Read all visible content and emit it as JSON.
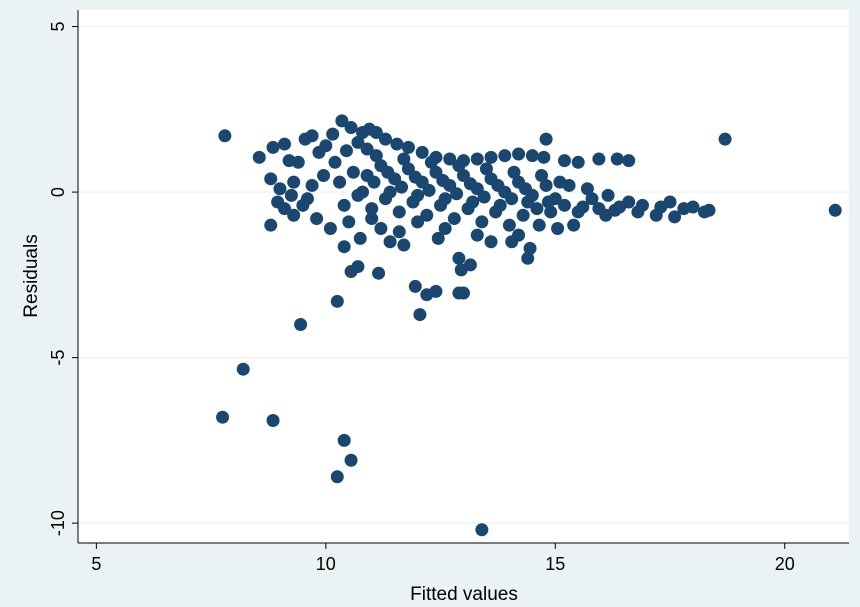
{
  "chart_data": {
    "type": "scatter",
    "xlabel": "Fitted values",
    "ylabel": "Residuals",
    "xlim": [
      4.6,
      21.4
    ],
    "ylim": [
      -10.6,
      5.5
    ],
    "x_ticks": [
      5,
      10,
      15,
      20
    ],
    "y_ticks": [
      5,
      0,
      -5,
      -10
    ],
    "grid": "horizontal",
    "colors": {
      "marker": "#1a476f",
      "plot_bg": "#ffffff",
      "outer_bg": "#eaf2f3",
      "grid": "#eaf2f3"
    },
    "points": [
      [
        7.8,
        1.7
      ],
      [
        18.7,
        1.6
      ],
      [
        21.1,
        -0.55
      ],
      [
        14.8,
        1.6
      ],
      [
        7.75,
        -6.8
      ],
      [
        8.2,
        -5.35
      ],
      [
        8.85,
        -6.9
      ],
      [
        9.45,
        -4.0
      ],
      [
        10.25,
        -3.3
      ],
      [
        10.4,
        -7.5
      ],
      [
        10.55,
        -8.1
      ],
      [
        10.25,
        -8.6
      ],
      [
        13.4,
        -10.2
      ],
      [
        12.05,
        -3.7
      ],
      [
        11.95,
        -2.85
      ],
      [
        12.2,
        -3.1
      ],
      [
        12.4,
        -3.0
      ],
      [
        12.9,
        -3.05
      ],
      [
        13.0,
        -3.05
      ],
      [
        11.15,
        -2.45
      ],
      [
        10.55,
        -2.4
      ],
      [
        10.7,
        -2.25
      ],
      [
        10.4,
        -1.65
      ],
      [
        10.75,
        -1.4
      ],
      [
        11.7,
        -1.6
      ],
      [
        12.95,
        -2.35
      ],
      [
        13.15,
        -2.2
      ],
      [
        12.9,
        -2.0
      ],
      [
        14.4,
        -2.0
      ],
      [
        14.45,
        -1.7
      ],
      [
        14.05,
        -1.5
      ],
      [
        13.6,
        -1.5
      ],
      [
        8.55,
        1.05
      ],
      [
        8.8,
        0.4
      ],
      [
        8.85,
        1.35
      ],
      [
        8.8,
        -1.0
      ],
      [
        9.1,
        1.45
      ],
      [
        9.2,
        0.95
      ],
      [
        9.4,
        0.9
      ],
      [
        9.3,
        0.3
      ],
      [
        8.95,
        -0.3
      ],
      [
        9.1,
        -0.5
      ],
      [
        9.3,
        -0.7
      ],
      [
        9.55,
        1.6
      ],
      [
        9.7,
        1.7
      ],
      [
        9.85,
        1.2
      ],
      [
        9.6,
        -0.2
      ],
      [
        9.8,
        -0.8
      ],
      [
        10.0,
        1.4
      ],
      [
        10.15,
        1.75
      ],
      [
        10.35,
        2.15
      ],
      [
        10.55,
        1.95
      ],
      [
        10.8,
        1.8
      ],
      [
        10.95,
        1.9
      ],
      [
        11.1,
        1.8
      ],
      [
        10.1,
        -1.1
      ],
      [
        10.5,
        -0.9
      ],
      [
        11.2,
        -1.1
      ],
      [
        11.6,
        -1.2
      ],
      [
        11.4,
        -1.5
      ],
      [
        12.45,
        -1.4
      ],
      [
        15.4,
        -1.0
      ],
      [
        15.05,
        -1.1
      ],
      [
        14.65,
        -1.0
      ],
      [
        14.2,
        -1.3
      ],
      [
        16.6,
        0.95
      ],
      [
        16.35,
        1.0
      ],
      [
        15.95,
        1.0
      ],
      [
        15.5,
        0.9
      ],
      [
        15.2,
        0.95
      ],
      [
        17.5,
        -0.3
      ],
      [
        17.8,
        -0.5
      ],
      [
        18.0,
        -0.45
      ],
      [
        18.35,
        -0.55
      ],
      [
        18.25,
        -0.6
      ],
      [
        17.6,
        -0.75
      ],
      [
        17.2,
        -0.7
      ],
      [
        16.8,
        -0.6
      ],
      [
        16.3,
        -0.55
      ],
      [
        15.95,
        -0.5
      ],
      [
        15.6,
        -0.45
      ],
      [
        16.1,
        -0.7
      ],
      [
        14.85,
        -0.3
      ],
      [
        15.3,
        0.2
      ],
      [
        15.1,
        0.3
      ],
      [
        15.7,
        0.1
      ],
      [
        16.15,
        -0.1
      ],
      [
        16.6,
        -0.3
      ],
      [
        9.0,
        0.1
      ],
      [
        9.25,
        -0.1
      ],
      [
        9.5,
        -0.4
      ],
      [
        9.7,
        0.2
      ],
      [
        9.95,
        0.5
      ],
      [
        10.2,
        0.9
      ],
      [
        10.45,
        1.25
      ],
      [
        10.7,
        1.5
      ],
      [
        10.9,
        1.3
      ],
      [
        11.3,
        1.6
      ],
      [
        11.55,
        1.45
      ],
      [
        11.8,
        1.35
      ],
      [
        12.1,
        1.2
      ],
      [
        12.4,
        1.05
      ],
      [
        12.7,
        1.0
      ],
      [
        13.0,
        0.95
      ],
      [
        13.3,
        1.0
      ],
      [
        13.6,
        1.05
      ],
      [
        13.9,
        1.1
      ],
      [
        14.2,
        1.15
      ],
      [
        14.5,
        1.1
      ],
      [
        14.75,
        1.05
      ],
      [
        10.3,
        0.3
      ],
      [
        10.6,
        0.6
      ],
      [
        10.9,
        0.5
      ],
      [
        11.2,
        0.8
      ],
      [
        11.5,
        0.4
      ],
      [
        11.8,
        0.7
      ],
      [
        12.1,
        0.3
      ],
      [
        12.4,
        0.6
      ],
      [
        12.7,
        0.2
      ],
      [
        13.0,
        0.5
      ],
      [
        13.3,
        0.1
      ],
      [
        13.6,
        0.4
      ],
      [
        13.9,
        0.0
      ],
      [
        14.2,
        0.3
      ],
      [
        14.5,
        -0.1
      ],
      [
        14.8,
        0.2
      ],
      [
        10.4,
        -0.4
      ],
      [
        10.7,
        -0.1
      ],
      [
        11.0,
        -0.5
      ],
      [
        11.3,
        -0.2
      ],
      [
        11.6,
        -0.6
      ],
      [
        11.9,
        -0.3
      ],
      [
        12.2,
        -0.7
      ],
      [
        12.5,
        -0.4
      ],
      [
        12.8,
        -0.8
      ],
      [
        13.1,
        -0.5
      ],
      [
        13.4,
        -0.9
      ],
      [
        13.7,
        -0.6
      ],
      [
        14.0,
        -1.0
      ],
      [
        14.3,
        -0.7
      ],
      [
        14.6,
        -0.5
      ],
      [
        14.9,
        -0.6
      ],
      [
        15.2,
        -0.4
      ],
      [
        10.8,
        0.0
      ],
      [
        11.1,
        1.1
      ],
      [
        11.4,
        0.0
      ],
      [
        11.7,
        1.0
      ],
      [
        12.0,
        -0.1
      ],
      [
        12.3,
        0.9
      ],
      [
        12.6,
        -0.2
      ],
      [
        12.9,
        0.8
      ],
      [
        13.2,
        -0.3
      ],
      [
        13.5,
        0.7
      ],
      [
        13.8,
        -0.4
      ],
      [
        14.1,
        0.6
      ],
      [
        14.4,
        -0.3
      ],
      [
        14.7,
        0.5
      ],
      [
        15.0,
        -0.2
      ],
      [
        15.5,
        -0.6
      ],
      [
        15.8,
        -0.2
      ],
      [
        16.4,
        -0.45
      ],
      [
        16.9,
        -0.4
      ],
      [
        17.3,
        -0.45
      ],
      [
        11.05,
        0.3
      ],
      [
        11.35,
        0.6
      ],
      [
        11.65,
        0.15
      ],
      [
        11.95,
        0.45
      ],
      [
        12.25,
        0.05
      ],
      [
        12.55,
        0.35
      ],
      [
        12.85,
        -0.05
      ],
      [
        13.15,
        0.25
      ],
      [
        13.45,
        -0.15
      ],
      [
        13.75,
        0.2
      ],
      [
        14.05,
        -0.2
      ],
      [
        14.35,
        0.1
      ],
      [
        12.6,
        -1.1
      ],
      [
        13.3,
        -1.3
      ],
      [
        12.0,
        -0.9
      ],
      [
        11.0,
        -0.8
      ]
    ]
  }
}
